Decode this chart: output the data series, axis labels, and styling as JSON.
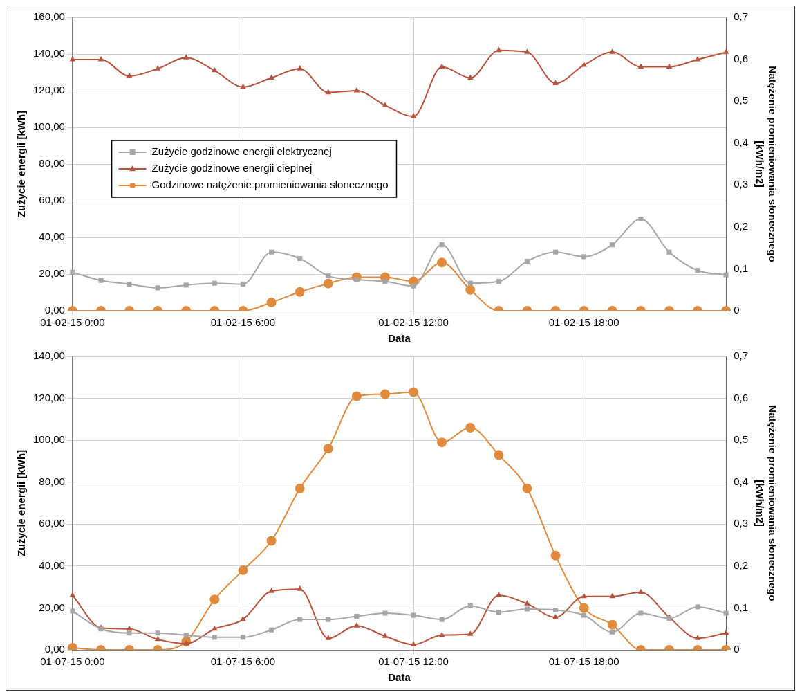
{
  "chart_data": [
    {
      "type": "line",
      "xlabel": "Data",
      "ylabel": "Zużycie energii [kWh]",
      "y2label": "Natężenie promieniowania słonecznego [kWh/m2]",
      "categories": [
        "01-02-15 0:00",
        null,
        null,
        null,
        null,
        null,
        "01-02-15 6:00",
        null,
        null,
        null,
        null,
        null,
        "01-02-15 12:00",
        null,
        null,
        null,
        null,
        null,
        "01-02-15 18:00",
        null,
        null,
        null,
        null,
        null
      ],
      "ylim": [
        0,
        160
      ],
      "yticks": [
        {
          "value": 0,
          "label": "0,00"
        },
        {
          "value": 20,
          "label": "20,00"
        },
        {
          "value": 40,
          "label": "40,00"
        },
        {
          "value": 60,
          "label": "60,00"
        },
        {
          "value": 80,
          "label": "80,00"
        },
        {
          "value": 100,
          "label": "100,00"
        },
        {
          "value": 120,
          "label": "120,00"
        },
        {
          "value": 140,
          "label": "140,00"
        },
        {
          "value": 160,
          "label": "160,00"
        }
      ],
      "y2lim": [
        0,
        0.7
      ],
      "y2ticks": [
        0,
        {
          "value": 0.1,
          "label": "0,1"
        },
        {
          "value": 0.2,
          "label": "0,2"
        },
        {
          "value": 0.3,
          "label": "0,3"
        },
        {
          "value": 0.4,
          "label": "0,4"
        },
        {
          "value": 0.5,
          "label": "0,5"
        },
        {
          "value": 0.6,
          "label": "0,6"
        },
        {
          "value": 0.7,
          "label": "0,7"
        }
      ],
      "grid": true,
      "legend": "left",
      "series": [
        {
          "name": "Zużycie godzinowe energii elektrycznej",
          "color": "#a6a6a6",
          "marker": "square",
          "values": [
            21,
            16.5,
            14.5,
            12.5,
            14,
            15,
            14.5,
            32,
            28.5,
            19,
            17,
            16,
            13.5,
            36,
            15,
            16,
            27,
            32,
            29.5,
            36,
            50,
            32,
            22,
            19.5
          ]
        },
        {
          "name": "Zużycie godzinowe energii cieplnej",
          "color": "#b5533c",
          "marker": "triangle",
          "values": [
            137,
            137,
            128,
            132,
            138,
            131,
            122,
            127,
            132,
            119,
            120,
            112,
            106,
            133,
            127,
            142,
            141,
            124,
            134,
            141,
            133,
            133,
            137,
            141
          ]
        },
        {
          "name": "Godzinowe natężenie promieniowania słonecznego",
          "color": "#e08a3e",
          "marker": "circle",
          "axis": "y2",
          "values": [
            0,
            0,
            0,
            0,
            0,
            0,
            0,
            0.02,
            0.045,
            0.065,
            0.08,
            0.08,
            0.07,
            0.115,
            0.05,
            0,
            0,
            0,
            0,
            0,
            0,
            0,
            0,
            0
          ]
        }
      ]
    },
    {
      "type": "line",
      "xlabel": "Data",
      "ylabel": "Zużycie energii [kWh]",
      "y2label": "Natężenie promieniowania słonecznego [kWh/m2]",
      "categories": [
        "01-07-15 0:00",
        null,
        null,
        null,
        null,
        null,
        "01-07-15 6:00",
        null,
        null,
        null,
        null,
        null,
        "01-07-15 12:00",
        null,
        null,
        null,
        null,
        null,
        "01-07-15 18:00",
        null,
        null,
        null,
        null,
        null
      ],
      "ylim": [
        0,
        140
      ],
      "yticks": [
        {
          "value": 0,
          "label": "0,00"
        },
        {
          "value": 20,
          "label": "20,00"
        },
        {
          "value": 40,
          "label": "40,00"
        },
        {
          "value": 60,
          "label": "60,00"
        },
        {
          "value": 80,
          "label": "80,00"
        },
        {
          "value": 100,
          "label": "100,00"
        },
        {
          "value": 120,
          "label": "120,00"
        },
        {
          "value": 140,
          "label": "140,00"
        }
      ],
      "y2lim": [
        0,
        0.7
      ],
      "y2ticks": [
        0,
        {
          "value": 0.1,
          "label": "0,1"
        },
        {
          "value": 0.2,
          "label": "0,2"
        },
        {
          "value": 0.3,
          "label": "0,3"
        },
        {
          "value": 0.4,
          "label": "0,4"
        },
        {
          "value": 0.5,
          "label": "0,5"
        },
        {
          "value": 0.6,
          "label": "0,6"
        },
        {
          "value": 0.7,
          "label": "0,7"
        }
      ],
      "grid": true,
      "series": [
        {
          "color": "#a6a6a6",
          "marker": "square",
          "values": [
            18.5,
            10,
            8,
            8,
            7,
            6,
            6,
            9.5,
            14.5,
            14.5,
            16,
            17.5,
            16.5,
            14.5,
            21,
            18,
            19.5,
            19,
            16.5,
            8.5,
            17.5,
            15,
            20.5,
            17.5
          ]
        },
        {
          "color": "#b5533c",
          "marker": "triangle",
          "values": [
            26,
            10.5,
            10,
            5,
            3,
            10,
            14.5,
            28,
            29,
            5.5,
            11.5,
            6.5,
            2.5,
            7,
            7.5,
            26,
            22,
            15.5,
            25.5,
            25.5,
            27.5,
            15.5,
            5.5,
            8
          ]
        },
        {
          "color": "#e08a3e",
          "marker": "circle",
          "axis": "y2",
          "values": [
            0.005,
            0,
            0,
            0,
            0.02,
            0.12,
            0.19,
            0.26,
            0.385,
            0.48,
            0.605,
            0.61,
            0.615,
            0.495,
            0.53,
            0.465,
            0.385,
            0.225,
            0.1,
            0.06,
            0,
            0,
            0,
            0
          ]
        }
      ]
    }
  ]
}
